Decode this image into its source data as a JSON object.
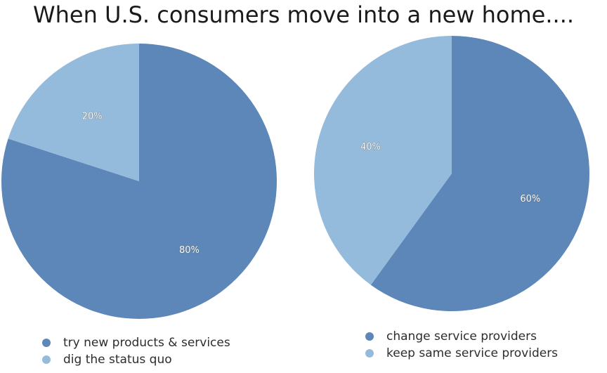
{
  "title": "When U.S. consumers move into a new home....",
  "colors": {
    "dark": "#5c87b8",
    "light": "#95bbdc"
  },
  "chart_data": [
    {
      "type": "pie",
      "title": "",
      "categories": [
        "try new products &  services",
        "dig the status quo"
      ],
      "values": [
        80,
        20
      ],
      "labels": [
        "80%",
        "20%"
      ],
      "legend_position": "bottom"
    },
    {
      "type": "pie",
      "title": "",
      "categories": [
        "change service providers",
        "keep same service providers"
      ],
      "values": [
        60,
        40
      ],
      "labels": [
        "60%",
        "40%"
      ],
      "legend_position": "bottom"
    }
  ]
}
